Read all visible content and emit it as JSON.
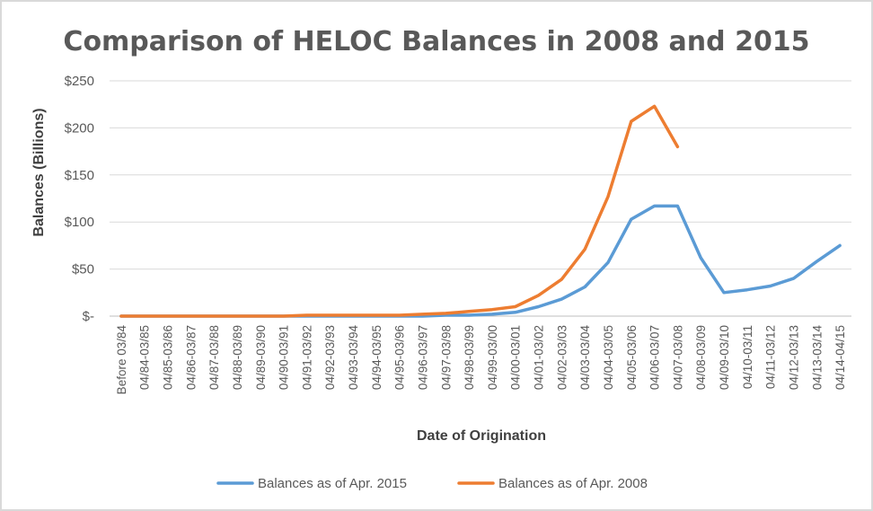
{
  "chart_data": {
    "type": "line",
    "title": "Comparison of HELOC Balances in 2008 and 2015",
    "xlabel": "Date of Origination",
    "ylabel": "Balances (Billions)",
    "ylim": [
      0,
      250
    ],
    "yticks": [
      {
        "value": 0,
        "label": "$-"
      },
      {
        "value": 50,
        "label": "$50"
      },
      {
        "value": 100,
        "label": "$100"
      },
      {
        "value": 150,
        "label": "$150"
      },
      {
        "value": 200,
        "label": "$200"
      },
      {
        "value": 250,
        "label": "$250"
      }
    ],
    "grid": true,
    "legend_position": "bottom",
    "categories": [
      "Before 03/84",
      "04/84-03/85",
      "04/85-03/86",
      "04/86-03/87",
      "04/87-03/88",
      "04/88-03/89",
      "04/89-03/90",
      "04/90-03/91",
      "04/91-03/92",
      "04/92-03/93",
      "04/93-03/94",
      "04/94-03/95",
      "04/95-03/96",
      "04/96-03/97",
      "04/97-03/98",
      "04/98-03/99",
      "04/99-03/00",
      "04/00-03/01",
      "04/01-03/02",
      "04/02-03/03",
      "04/03-03/04",
      "04/04-03/05",
      "04/05-03/06",
      "04/06-03/07",
      "04/07-03/08",
      "04/08-03/09",
      "04/09-03/10",
      "04/10-03/11",
      "04/11-03/12",
      "04/12-03/13",
      "04/13-03/14",
      "04/14-04/15"
    ],
    "series": [
      {
        "name": "Balances as of Apr. 2015",
        "color": "#5B9BD5",
        "values": [
          0,
          0,
          0,
          0,
          0,
          0,
          0,
          0,
          0,
          0,
          0,
          0,
          0,
          0,
          1,
          1,
          2,
          4,
          10,
          18,
          31,
          57,
          103,
          117,
          117,
          62,
          25,
          28,
          32,
          40,
          58,
          75
        ]
      },
      {
        "name": "Balances as of Apr. 2008",
        "color": "#ED7D31",
        "values": [
          0,
          0,
          0,
          0,
          0,
          0,
          0,
          0,
          1,
          1,
          1,
          1,
          1,
          2,
          3,
          5,
          7,
          10,
          22,
          39,
          71,
          127,
          207,
          223,
          180,
          null,
          null,
          null,
          null,
          null,
          null,
          null
        ]
      }
    ]
  }
}
